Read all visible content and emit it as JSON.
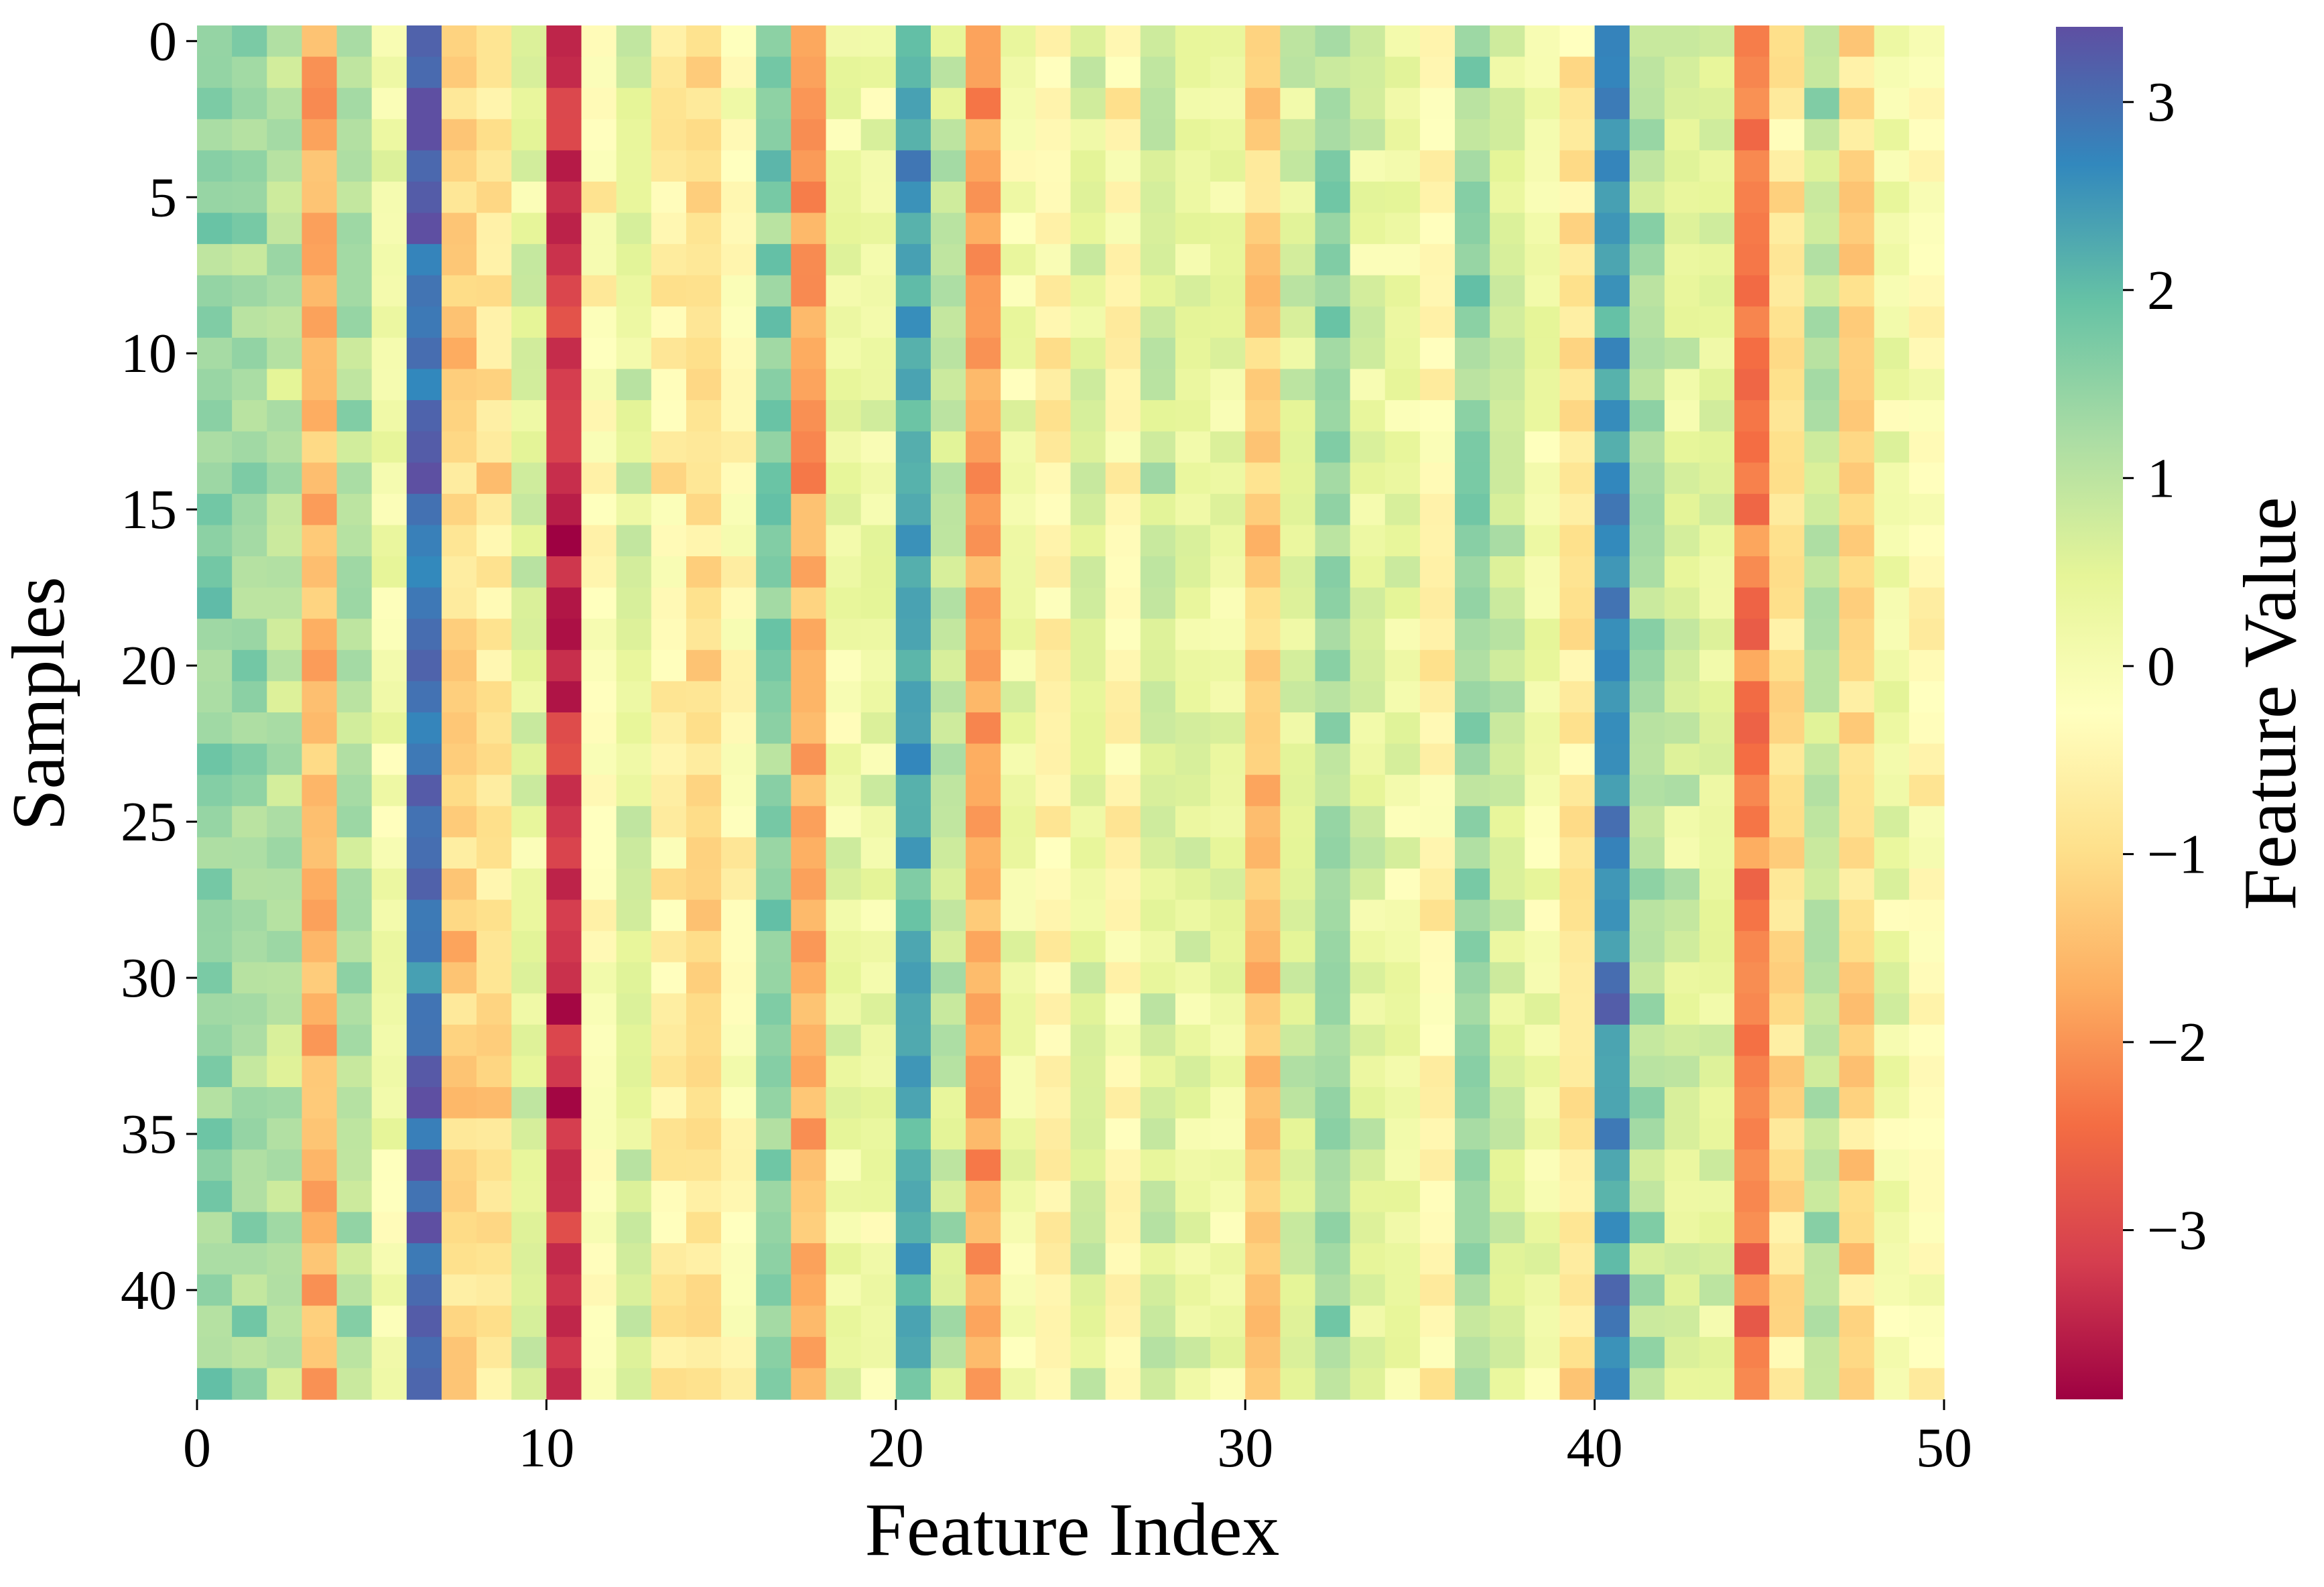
{
  "chart_data": {
    "type": "heatmap",
    "xlabel": "Feature Index",
    "ylabel": "Samples",
    "colorbar_label": "Feature Value",
    "n_rows": 44,
    "n_cols": 50,
    "xlim": [
      0,
      50
    ],
    "ylim": [
      0,
      44
    ],
    "xticks": [
      0,
      10,
      20,
      30,
      40,
      50
    ],
    "yticks": [
      0,
      5,
      10,
      15,
      20,
      25,
      30,
      35,
      40
    ],
    "colorbar_range": [
      -3.9,
      3.4
    ],
    "colorbar_ticks": [
      3,
      2,
      1,
      0,
      -1,
      -2,
      -3
    ],
    "colormap": "Spectral",
    "colormap_stops": [
      "#9e0142",
      "#d53e4f",
      "#f46d43",
      "#fdae61",
      "#fee08b",
      "#ffffbf",
      "#e6f598",
      "#abdda4",
      "#66c2a5",
      "#3288bd",
      "#5e4fa2"
    ],
    "column_means": [
      1.4,
      1.3,
      1.0,
      -1.6,
      1.2,
      0.1,
      3.0,
      -1.2,
      -0.9,
      0.5,
      -3.3,
      -0.2,
      0.6,
      -0.6,
      -1.0,
      -0.3,
      1.6,
      -1.7,
      0.3,
      0.2,
      2.2,
      0.9,
      -1.8,
      0.2,
      -0.5,
      0.6,
      -0.4,
      0.7,
      0.4,
      0.3,
      -1.3,
      0.6,
      1.3,
      0.5,
      0.3,
      -0.5,
      1.4,
      0.7,
      0.2,
      -0.8,
      2.6,
      1.2,
      0.6,
      0.5,
      -2.2,
      -0.9,
      1.0,
      -1.1,
      0.2,
      -0.3
    ],
    "anomalies": [
      {
        "row": 4,
        "col": 10,
        "value": -3.6
      },
      {
        "row": 16,
        "col": 10,
        "value": -3.9
      },
      {
        "row": 4,
        "col": 20,
        "value": 2.9
      },
      {
        "row": 40,
        "col": 40,
        "value": 3.1
      },
      {
        "row": 25,
        "col": 40,
        "value": 3.0
      },
      {
        "row": 15,
        "col": 40,
        "value": 2.9
      },
      {
        "row": 27,
        "col": 44,
        "value": -2.6
      },
      {
        "row": 19,
        "col": 44,
        "value": -2.7
      }
    ]
  }
}
